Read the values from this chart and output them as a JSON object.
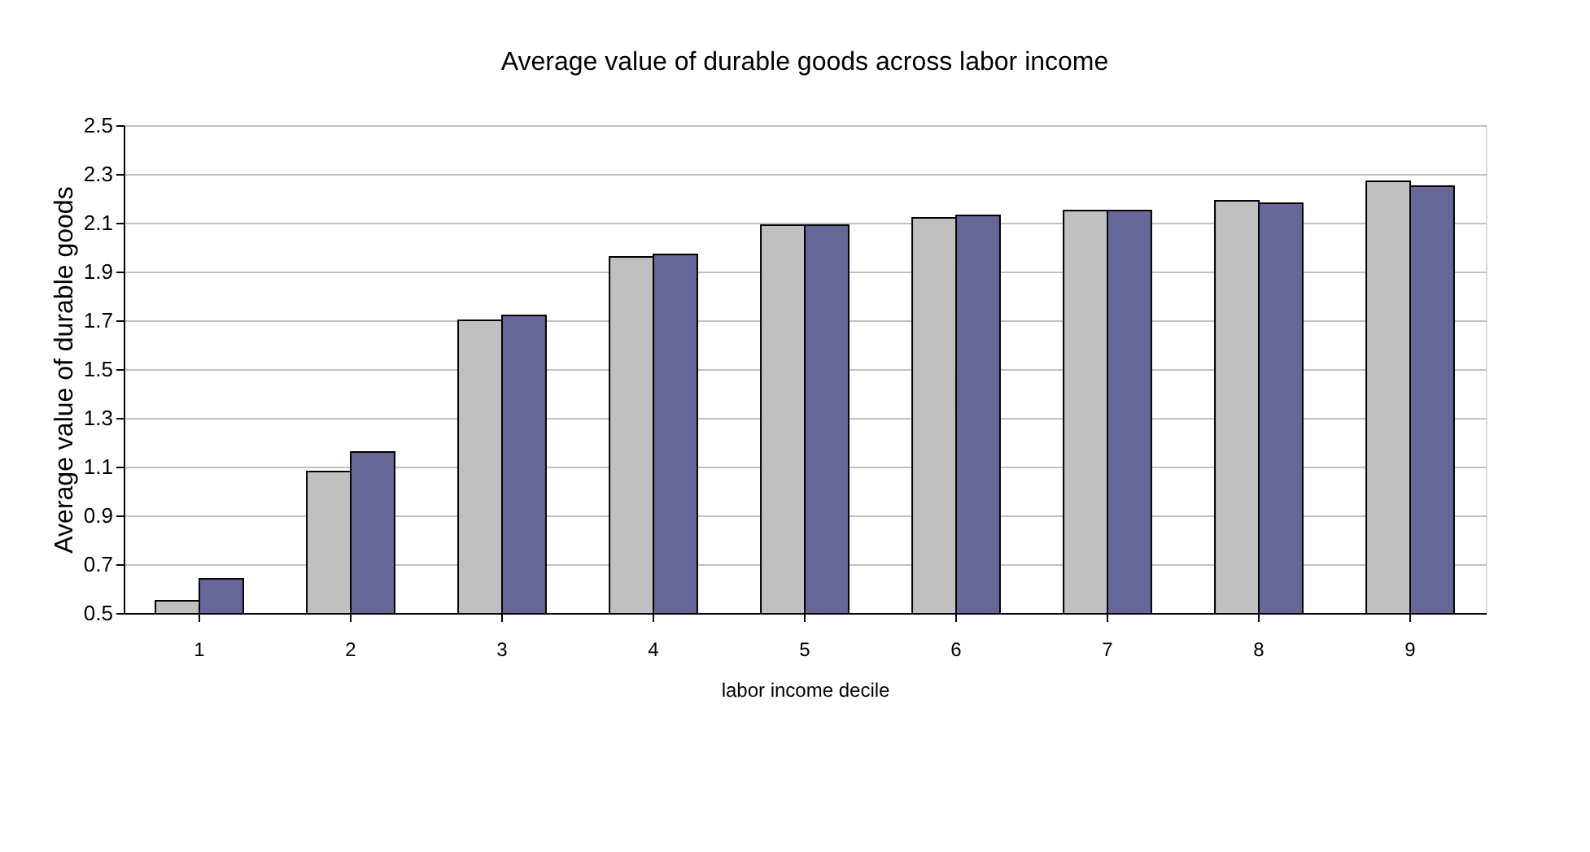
{
  "chart_data": {
    "type": "bar",
    "title": "Average value of durable goods across labor income",
    "xlabel": "labor income decile",
    "ylabel": "Average value of durable goods",
    "categories": [
      "1",
      "2",
      "3",
      "4",
      "5",
      "6",
      "7",
      "8",
      "9"
    ],
    "series": [
      {
        "color": "#c0c0c0",
        "values": [
          0.55,
          1.08,
          1.7,
          1.96,
          2.09,
          2.12,
          2.15,
          2.19,
          2.27
        ]
      },
      {
        "color": "#666699",
        "values": [
          0.64,
          1.16,
          1.72,
          1.97,
          2.09,
          2.13,
          2.15,
          2.18,
          2.25
        ]
      }
    ],
    "ylim": [
      0.5,
      2.5
    ],
    "yticks": [
      0.5,
      0.7,
      0.9,
      1.1,
      1.3,
      1.5,
      1.7,
      1.9,
      2.1,
      2.3,
      2.5
    ],
    "grid": "y",
    "legend": false
  }
}
